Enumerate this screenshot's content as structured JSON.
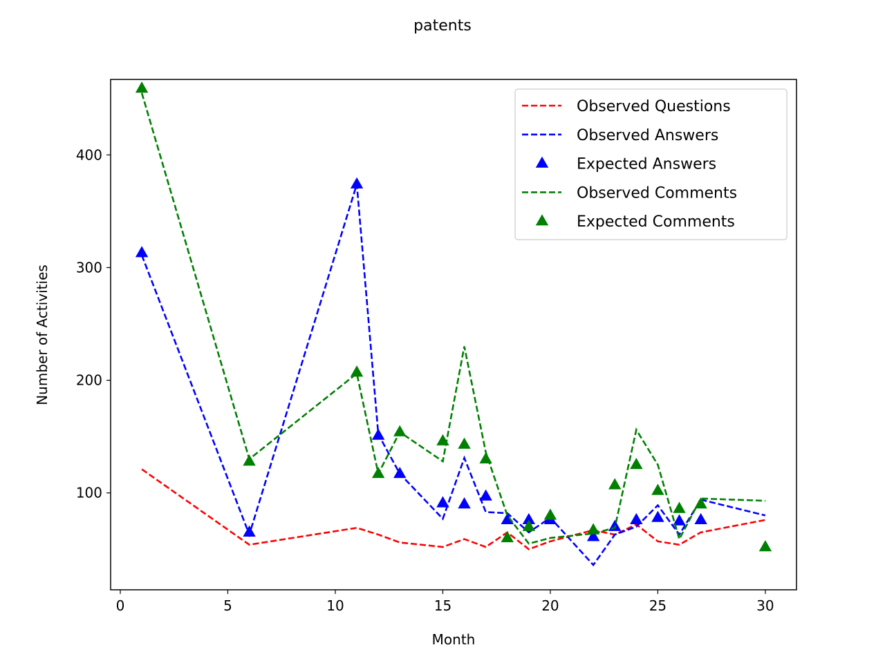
{
  "chart_data": {
    "type": "line",
    "title": "patents",
    "xlabel": "Month",
    "ylabel": "Number of Activities",
    "xlim": [
      -0.45,
      31.45
    ],
    "ylim": [
      14,
      467
    ],
    "xticks": [
      0,
      5,
      10,
      15,
      20,
      25,
      30
    ],
    "yticks": [
      100,
      200,
      300,
      400
    ],
    "grid": false,
    "legend_position": "top-right",
    "series": [
      {
        "name": "Observed Questions",
        "kind": "line",
        "color": "#ff0000",
        "x": [
          1,
          6,
          11,
          12,
          13,
          15,
          16,
          17,
          18,
          19,
          20,
          22,
          23,
          24,
          25,
          26,
          27,
          30
        ],
        "y": [
          121,
          54,
          69,
          63,
          56,
          52,
          59,
          52,
          65,
          50,
          57,
          67,
          63,
          72,
          57,
          54,
          65,
          76
        ]
      },
      {
        "name": "Observed Answers",
        "kind": "line",
        "color": "#0000ff",
        "x": [
          1,
          6,
          11,
          12,
          13,
          15,
          16,
          17,
          18,
          19,
          20,
          22,
          23,
          24,
          25,
          26,
          27,
          30
        ],
        "y": [
          311,
          63,
          374,
          152,
          117,
          77,
          131,
          83,
          82,
          65,
          78,
          36,
          63,
          70,
          89,
          63,
          94,
          80
        ]
      },
      {
        "name": "Expected Answers",
        "kind": "marker",
        "color": "#0000ff",
        "x": [
          1,
          6,
          11,
          12,
          13,
          15,
          16,
          17,
          18,
          19,
          20,
          22,
          23,
          24,
          25,
          26,
          27
        ],
        "y": [
          313,
          65,
          374,
          151,
          117,
          91,
          90,
          97,
          76,
          76,
          76,
          61,
          70,
          76,
          78,
          75,
          76
        ]
      },
      {
        "name": "Observed Comments",
        "kind": "line",
        "color": "#008000",
        "x": [
          1,
          6,
          11,
          12,
          13,
          15,
          16,
          17,
          18,
          19,
          20,
          22,
          23,
          24,
          25,
          26,
          27,
          30
        ],
        "y": [
          455,
          130,
          206,
          117,
          154,
          128,
          230,
          136,
          80,
          55,
          60,
          64,
          69,
          156,
          125,
          59,
          95,
          93
        ]
      },
      {
        "name": "Expected Comments",
        "kind": "marker",
        "color": "#008000",
        "x": [
          1,
          6,
          11,
          12,
          13,
          15,
          16,
          17,
          18,
          19,
          20,
          22,
          23,
          24,
          25,
          26,
          27,
          30
        ],
        "y": [
          459,
          128,
          207,
          117,
          154,
          146,
          143,
          130,
          60,
          70,
          80,
          67,
          107,
          125,
          102,
          86,
          90,
          52
        ]
      }
    ]
  }
}
